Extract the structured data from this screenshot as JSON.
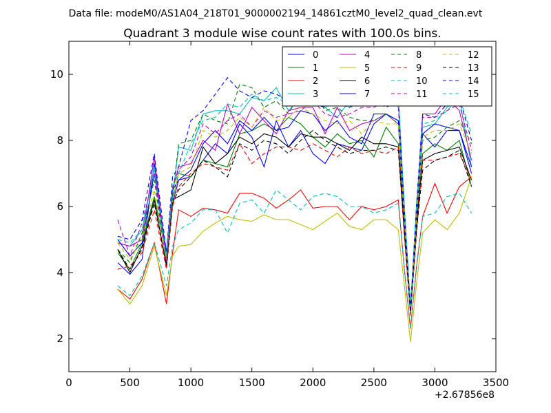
{
  "chart_data": {
    "type": "line",
    "suptitle": "Data file: modeM0/AS1A04_218T01_9000002194_14861cztM0_level2_quad_clean.evt",
    "title": "Quadrant 3 module wise count rates with 100.0s bins.",
    "xlabel": "",
    "ylabel": "",
    "x_offset_label": "+2.67856e8",
    "xlim": [
      0,
      3500
    ],
    "ylim": [
      1,
      11
    ],
    "xticks": [
      0,
      500,
      1000,
      1500,
      2000,
      2500,
      3000,
      3500
    ],
    "yticks": [
      2,
      4,
      6,
      8,
      10
    ],
    "legend_position": "upper-right",
    "legend_columns": 4,
    "x": [
      400,
      500,
      600,
      700,
      800,
      850,
      900,
      1000,
      1100,
      1200,
      1300,
      1400,
      1500,
      1600,
      1700,
      1800,
      1900,
      2000,
      2100,
      2200,
      2300,
      2400,
      2500,
      2600,
      2700,
      2750,
      2800,
      2850,
      2900,
      3000,
      3100,
      3200,
      3300
    ],
    "series": [
      {
        "name": "0",
        "color": "#0000ff",
        "dash": "solid",
        "values": [
          4.3,
          3.95,
          4.4,
          7.3,
          4.4,
          6.1,
          6.8,
          6.9,
          7.4,
          7.9,
          7.6,
          8.5,
          8.1,
          7.2,
          8.6,
          7.8,
          8.3,
          7.6,
          7.3,
          7.9,
          7.8,
          7.7,
          8.5,
          8.8,
          8.6,
          5.2,
          3.0,
          5.5,
          8.2,
          7.8,
          8.3,
          8.3,
          7.0
        ]
      },
      {
        "name": "1",
        "color": "#008000",
        "dash": "solid",
        "values": [
          4.6,
          4.1,
          4.9,
          6.3,
          4.5,
          6.2,
          7.0,
          6.9,
          7.4,
          7.3,
          7.2,
          8.2,
          8.3,
          8.5,
          8.3,
          8.7,
          8.5,
          8.1,
          7.8,
          8.2,
          7.9,
          8.0,
          7.5,
          8.4,
          7.9,
          5.4,
          2.7,
          5.6,
          7.6,
          7.9,
          7.7,
          8.0,
          6.6
        ]
      },
      {
        "name": "2",
        "color": "#ff0000",
        "dash": "solid",
        "values": [
          3.5,
          3.2,
          3.8,
          4.9,
          3.05,
          4.6,
          5.9,
          5.7,
          5.95,
          5.9,
          5.8,
          6.4,
          6.4,
          6.25,
          5.95,
          6.2,
          6.5,
          5.95,
          6.0,
          6.0,
          5.6,
          6.0,
          5.9,
          6.0,
          6.2,
          4.1,
          2.3,
          4.2,
          5.7,
          6.7,
          5.8,
          6.6,
          6.9
        ]
      },
      {
        "name": "3",
        "color": "#00bfbf",
        "dash": "solid",
        "values": [
          4.9,
          4.8,
          5.3,
          7.2,
          4.2,
          6.3,
          7.8,
          7.7,
          8.8,
          8.9,
          8.9,
          8.8,
          9.3,
          9.2,
          9.6,
          8.9,
          9.3,
          9.2,
          9.0,
          8.7,
          9.2,
          9.3,
          9.1,
          9.3,
          9.4,
          6.0,
          2.8,
          6.1,
          8.4,
          8.5,
          9.0,
          9.3,
          7.2
        ]
      },
      {
        "name": "4",
        "color": "#bf00bf",
        "dash": "solid",
        "values": [
          4.9,
          4.8,
          5.0,
          7.5,
          4.3,
          6.5,
          7.2,
          7.3,
          8.0,
          7.7,
          9.1,
          8.2,
          9.0,
          8.6,
          8.2,
          8.9,
          9.0,
          9.0,
          8.2,
          9.0,
          8.3,
          8.5,
          8.6,
          8.8,
          8.5,
          5.8,
          2.8,
          5.9,
          8.8,
          8.8,
          9.3,
          8.9,
          7.4
        ]
      },
      {
        "name": "5",
        "color": "#bfbf00",
        "dash": "solid",
        "values": [
          3.5,
          3.05,
          3.6,
          4.8,
          3.3,
          4.5,
          4.8,
          4.85,
          5.25,
          5.5,
          5.7,
          5.6,
          5.55,
          5.75,
          5.6,
          5.6,
          5.45,
          5.3,
          5.55,
          5.8,
          5.4,
          5.3,
          5.6,
          5.6,
          5.3,
          3.6,
          1.9,
          3.7,
          5.2,
          5.6,
          5.3,
          5.8,
          6.9
        ]
      },
      {
        "name": "6",
        "color": "#000000",
        "dash": "solid",
        "values": [
          4.7,
          4.0,
          4.8,
          6.2,
          4.2,
          6.2,
          6.3,
          6.5,
          7.8,
          7.3,
          7.6,
          8.1,
          7.9,
          8.2,
          8.1,
          7.8,
          8.2,
          8.1,
          8.1,
          7.9,
          7.7,
          8.1,
          7.9,
          7.9,
          7.8,
          5.3,
          2.9,
          5.5,
          7.4,
          7.6,
          7.7,
          7.8,
          6.8
        ]
      },
      {
        "name": "7",
        "color": "#0000ff",
        "dash": "solid",
        "values": [
          5.0,
          4.5,
          4.9,
          7.0,
          4.6,
          6.5,
          6.8,
          7.1,
          7.9,
          8.3,
          7.9,
          8.6,
          8.3,
          8.7,
          8.3,
          8.4,
          8.9,
          8.8,
          8.3,
          8.6,
          8.1,
          7.9,
          8.8,
          8.8,
          8.6,
          5.6,
          2.9,
          5.7,
          8.2,
          8.5,
          8.4,
          8.3,
          7.2
        ]
      },
      {
        "name": "8",
        "color": "#008000",
        "dash": "dashed",
        "values": [
          4.7,
          4.3,
          5.2,
          6.8,
          4.3,
          6.3,
          7.9,
          8.0,
          8.8,
          8.6,
          8.5,
          9.7,
          9.6,
          9.0,
          9.2,
          8.8,
          9.5,
          9.6,
          8.9,
          9.0,
          8.7,
          8.6,
          8.6,
          8.8,
          8.5,
          5.7,
          2.9,
          5.8,
          8.0,
          8.1,
          8.4,
          8.6,
          7.9
        ]
      },
      {
        "name": "9",
        "color": "#ff0000",
        "dash": "dashed",
        "values": [
          4.1,
          4.2,
          4.6,
          5.9,
          4.1,
          6.0,
          6.6,
          7.0,
          7.3,
          7.2,
          7.1,
          7.9,
          7.3,
          7.6,
          7.8,
          7.8,
          7.7,
          7.9,
          7.7,
          7.5,
          7.8,
          7.6,
          7.7,
          7.6,
          7.8,
          5.1,
          2.7,
          5.2,
          7.4,
          7.4,
          7.5,
          7.6,
          6.8
        ]
      },
      {
        "name": "10",
        "color": "#00bfbf",
        "dash": "dashed",
        "values": [
          3.6,
          3.3,
          3.9,
          4.9,
          3.6,
          4.8,
          5.3,
          5.5,
          5.9,
          5.9,
          5.2,
          6.1,
          6.2,
          5.8,
          6.5,
          6.2,
          5.9,
          6.3,
          6.4,
          6.3,
          6.0,
          6.0,
          5.8,
          5.9,
          6.1,
          4.1,
          2.3,
          4.2,
          5.7,
          5.8,
          6.3,
          6.4,
          5.8
        ]
      },
      {
        "name": "11",
        "color": "#bf00bf",
        "dash": "dashed",
        "values": [
          5.6,
          4.5,
          5.5,
          7.0,
          4.3,
          6.6,
          7.1,
          7.5,
          8.5,
          8.2,
          8.6,
          8.8,
          8.4,
          8.9,
          8.7,
          8.8,
          8.9,
          9.2,
          8.8,
          8.7,
          8.8,
          9.0,
          9.0,
          9.2,
          9.0,
          5.9,
          2.9,
          6.0,
          8.7,
          8.7,
          8.9,
          9.1,
          7.7
        ]
      },
      {
        "name": "12",
        "color": "#bfbf00",
        "dash": "dashed",
        "values": [
          4.9,
          4.4,
          5.0,
          6.5,
          4.4,
          6.2,
          7.0,
          7.2,
          8.3,
          8.1,
          8.3,
          8.7,
          8.4,
          9.0,
          8.6,
          8.7,
          9.0,
          8.8,
          8.6,
          8.5,
          8.6,
          8.2,
          8.6,
          8.5,
          8.5,
          5.6,
          2.8,
          5.7,
          8.1,
          8.3,
          8.3,
          8.5,
          7.6
        ]
      },
      {
        "name": "13",
        "color": "#000000",
        "dash": "dashed",
        "values": [
          4.7,
          4.1,
          4.7,
          6.1,
          4.2,
          6.1,
          6.5,
          6.9,
          7.4,
          7.2,
          6.9,
          7.9,
          7.7,
          8.0,
          7.9,
          7.6,
          8.0,
          8.3,
          8.0,
          7.8,
          7.6,
          7.7,
          7.7,
          7.8,
          7.7,
          5.2,
          2.8,
          5.3,
          7.1,
          7.4,
          7.5,
          7.7,
          6.6
        ]
      },
      {
        "name": "14",
        "color": "#0000ff",
        "dash": "dashed",
        "values": [
          5.1,
          5.0,
          5.6,
          7.6,
          4.6,
          6.9,
          7.2,
          8.6,
          8.9,
          9.4,
          9.9,
          9.5,
          9.3,
          9.5,
          9.4,
          9.2,
          9.3,
          9.1,
          9.0,
          9.3,
          9.0,
          9.1,
          9.2,
          9.0,
          9.2,
          5.9,
          2.9,
          6.1,
          8.8,
          8.7,
          9.1,
          9.3,
          8.0
        ]
      },
      {
        "name": "15",
        "color": "#00bfbf",
        "dash": "dashed",
        "values": [
          5.0,
          4.9,
          5.3,
          7.1,
          4.5,
          6.6,
          7.0,
          7.9,
          8.6,
          8.7,
          9.1,
          9.0,
          9.4,
          9.2,
          9.3,
          9.1,
          9.2,
          9.3,
          9.0,
          9.1,
          9.0,
          9.2,
          9.2,
          9.1,
          9.2,
          6.0,
          3.0,
          6.1,
          8.5,
          8.6,
          8.9,
          9.3,
          8.2
        ]
      }
    ]
  }
}
